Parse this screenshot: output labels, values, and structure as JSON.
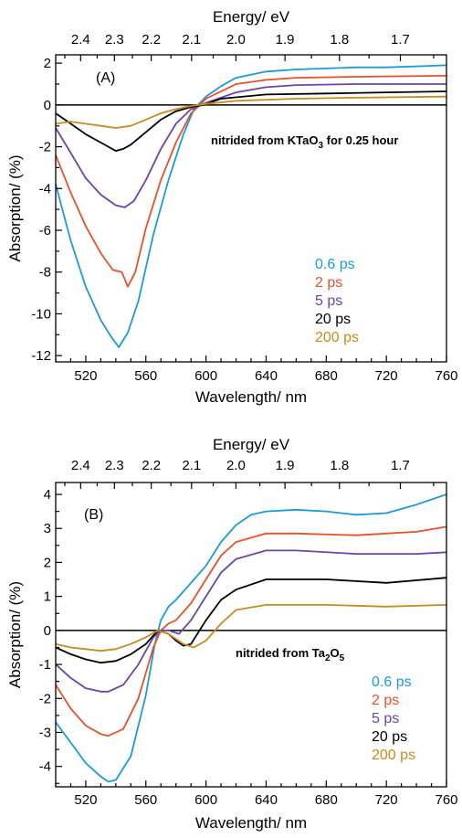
{
  "chart_data": [
    {
      "type": "line",
      "panel_label": "(A)",
      "annotation": {
        "prefix": "nitrided from KTaO",
        "sub": "3",
        "suffix": "  for 0.25 hour"
      },
      "xlabel": "Wavelength/ nm",
      "ylabel": "Absorption/ (%)",
      "top_xlabel": "Energy/ eV",
      "xlim": [
        500,
        760
      ],
      "ylim": [
        -12.3,
        2.4
      ],
      "xticks": [
        520,
        560,
        600,
        640,
        680,
        720,
        760
      ],
      "yticks": [
        2,
        0,
        -2,
        -4,
        -6,
        -8,
        -10,
        -12
      ],
      "top_ticks": [
        2.4,
        2.3,
        2.2,
        2.1,
        2.0,
        1.9,
        1.8,
        1.7
      ],
      "top_tick_labels": [
        "2.4",
        "2.3",
        "2.2",
        "2.1",
        "2.0",
        "1.9",
        "1.8",
        "1.7"
      ],
      "zero_line": true,
      "series": [
        {
          "name": "0.6 ps",
          "color": "#1a9bd7",
          "x": [
            500,
            510,
            520,
            530,
            536,
            542,
            548,
            555,
            565,
            575,
            585,
            592,
            596,
            600,
            610,
            620,
            640,
            660,
            680,
            700,
            720,
            740,
            760
          ],
          "y": [
            -3.8,
            -6.5,
            -8.7,
            -10.3,
            -11.0,
            -11.6,
            -10.9,
            -9.4,
            -6.2,
            -3.6,
            -1.4,
            -0.2,
            0.1,
            0.4,
            0.9,
            1.3,
            1.6,
            1.7,
            1.75,
            1.8,
            1.8,
            1.85,
            1.9
          ]
        },
        {
          "name": "2 ps",
          "color": "#e8502a",
          "x": [
            500,
            510,
            520,
            530,
            538,
            544,
            548,
            553,
            560,
            570,
            580,
            590,
            596,
            600,
            620,
            640,
            660,
            700,
            760
          ],
          "y": [
            -2.4,
            -4.2,
            -5.8,
            -7.1,
            -7.9,
            -8.0,
            -8.7,
            -8.0,
            -5.9,
            -3.6,
            -1.8,
            -0.4,
            0.0,
            0.3,
            1.0,
            1.2,
            1.3,
            1.35,
            1.4
          ]
        },
        {
          "name": "5 ps",
          "color": "#6a45a8",
          "x": [
            500,
            510,
            520,
            530,
            540,
            546,
            552,
            560,
            570,
            580,
            590,
            597,
            600,
            620,
            640,
            660,
            700,
            760
          ],
          "y": [
            -1.1,
            -2.3,
            -3.5,
            -4.3,
            -4.8,
            -4.9,
            -4.6,
            -3.6,
            -2.1,
            -0.9,
            -0.2,
            0.0,
            0.1,
            0.6,
            0.85,
            0.95,
            1.0,
            1.0
          ]
        },
        {
          "name": "20 ps",
          "color": "#000000",
          "x": [
            500,
            510,
            520,
            530,
            540,
            545,
            550,
            560,
            570,
            580,
            590,
            598,
            610,
            640,
            680,
            720,
            760
          ],
          "y": [
            -0.4,
            -0.9,
            -1.4,
            -1.8,
            -2.2,
            -2.1,
            -1.9,
            -1.3,
            -0.7,
            -0.3,
            -0.1,
            0.0,
            0.3,
            0.5,
            0.55,
            0.6,
            0.65
          ]
        },
        {
          "name": "200 ps",
          "color": "#c98a1e",
          "x": [
            500,
            510,
            520,
            530,
            540,
            550,
            560,
            570,
            580,
            590,
            600,
            620,
            660,
            700,
            760
          ],
          "y": [
            -0.9,
            -0.8,
            -0.9,
            -1.0,
            -1.1,
            -1.0,
            -0.7,
            -0.4,
            -0.2,
            -0.05,
            0.05,
            0.2,
            0.3,
            0.35,
            0.4
          ]
        }
      ]
    },
    {
      "type": "line",
      "panel_label": "(B)",
      "annotation": {
        "prefix": "nitrided from Ta",
        "sub": "2",
        "suffix": "O",
        "sub2": "5"
      },
      "xlabel": "Wavelength/ nm",
      "ylabel": "Absorption/ (%)",
      "top_xlabel": "Energy/ eV",
      "xlim": [
        500,
        760
      ],
      "ylim": [
        -4.6,
        4.35
      ],
      "xticks": [
        520,
        560,
        600,
        640,
        680,
        720,
        760
      ],
      "yticks": [
        4,
        3,
        2,
        1,
        0,
        -1,
        -2,
        -3,
        -4
      ],
      "top_ticks": [
        2.4,
        2.3,
        2.2,
        2.1,
        2.0,
        1.9,
        1.8,
        1.7
      ],
      "top_tick_labels": [
        "2.4",
        "2.3",
        "2.2",
        "2.1",
        "2.0",
        "1.9",
        "1.8",
        "1.7"
      ],
      "zero_line": true,
      "series": [
        {
          "name": "0.6 ps",
          "color": "#1a9bd7",
          "x": [
            500,
            510,
            520,
            530,
            535,
            540,
            550,
            560,
            566,
            570,
            575,
            580,
            590,
            600,
            610,
            620,
            630,
            640,
            660,
            680,
            700,
            720,
            740,
            760
          ],
          "y": [
            -2.7,
            -3.3,
            -3.9,
            -4.3,
            -4.45,
            -4.4,
            -3.7,
            -1.9,
            -0.4,
            0.3,
            0.7,
            0.9,
            1.4,
            1.9,
            2.6,
            3.1,
            3.4,
            3.5,
            3.55,
            3.5,
            3.4,
            3.45,
            3.7,
            4.0
          ]
        },
        {
          "name": "2 ps",
          "color": "#e8502a",
          "x": [
            500,
            510,
            520,
            530,
            535,
            545,
            555,
            565,
            570,
            575,
            580,
            590,
            600,
            610,
            620,
            640,
            660,
            700,
            740,
            760
          ],
          "y": [
            -1.6,
            -2.3,
            -2.8,
            -3.05,
            -3.1,
            -2.9,
            -2.0,
            -0.5,
            0.0,
            0.2,
            0.3,
            0.8,
            1.5,
            2.2,
            2.6,
            2.85,
            2.85,
            2.8,
            2.9,
            3.05
          ]
        },
        {
          "name": "5 ps",
          "color": "#6a45a8",
          "x": [
            500,
            510,
            520,
            530,
            535,
            545,
            555,
            565,
            570,
            575,
            582,
            590,
            600,
            610,
            620,
            640,
            660,
            700,
            740,
            760
          ],
          "y": [
            -1.0,
            -1.4,
            -1.7,
            -1.8,
            -1.8,
            -1.6,
            -1.0,
            -0.2,
            0.0,
            0.0,
            -0.1,
            0.3,
            1.0,
            1.7,
            2.1,
            2.35,
            2.35,
            2.25,
            2.25,
            2.3
          ]
        },
        {
          "name": "20 ps",
          "color": "#000000",
          "x": [
            500,
            510,
            520,
            530,
            540,
            550,
            560,
            568,
            575,
            580,
            585,
            590,
            600,
            610,
            620,
            640,
            680,
            720,
            760
          ],
          "y": [
            -0.5,
            -0.7,
            -0.85,
            -0.95,
            -0.9,
            -0.7,
            -0.4,
            0.0,
            -0.1,
            -0.3,
            -0.45,
            -0.4,
            0.3,
            0.9,
            1.2,
            1.5,
            1.5,
            1.4,
            1.55
          ]
        },
        {
          "name": "200 ps",
          "color": "#c98a1e",
          "x": [
            500,
            510,
            520,
            530,
            540,
            550,
            560,
            568,
            575,
            585,
            592,
            600,
            610,
            620,
            640,
            680,
            720,
            760
          ],
          "y": [
            -0.4,
            -0.5,
            -0.55,
            -0.6,
            -0.55,
            -0.4,
            -0.2,
            0.0,
            -0.1,
            -0.4,
            -0.5,
            -0.3,
            0.2,
            0.6,
            0.75,
            0.75,
            0.7,
            0.75
          ]
        }
      ]
    }
  ]
}
